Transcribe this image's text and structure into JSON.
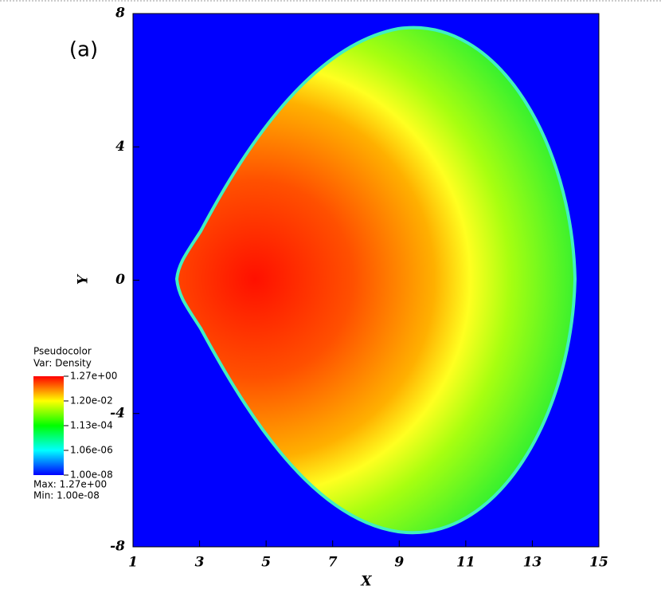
{
  "chart_data": {
    "type": "pseudocolor",
    "panel_label": "(a)",
    "x_label": "X",
    "y_label": "Y",
    "xlim": [
      1,
      15
    ],
    "xticks": [
      1,
      3,
      5,
      7,
      9,
      11,
      13,
      15
    ],
    "ylim": [
      -8,
      8
    ],
    "yticks": [
      -8,
      -4,
      0,
      4,
      8
    ],
    "legend": {
      "title": "Pseudocolor",
      "variable": "Var: Density",
      "scale": "log",
      "lim": [
        1e-08,
        1.27
      ],
      "ticks": [
        {
          "value": 1.27,
          "label": "1.27e+00"
        },
        {
          "value": 0.012,
          "label": "1.20e-02"
        },
        {
          "value": 0.000113,
          "label": "1.13e-04"
        },
        {
          "value": 1.06e-06,
          "label": "1.06e-06"
        },
        {
          "value": 1e-08,
          "label": "1.00e-08"
        }
      ],
      "colors": [
        "#0000ff",
        "#00ffff",
        "#00ff00",
        "#ffff00",
        "#ff0000"
      ],
      "max_label": "Max: 1.27e+00",
      "min_label": "Min: 1.00e-08"
    },
    "background_color": "#0000ff"
  }
}
